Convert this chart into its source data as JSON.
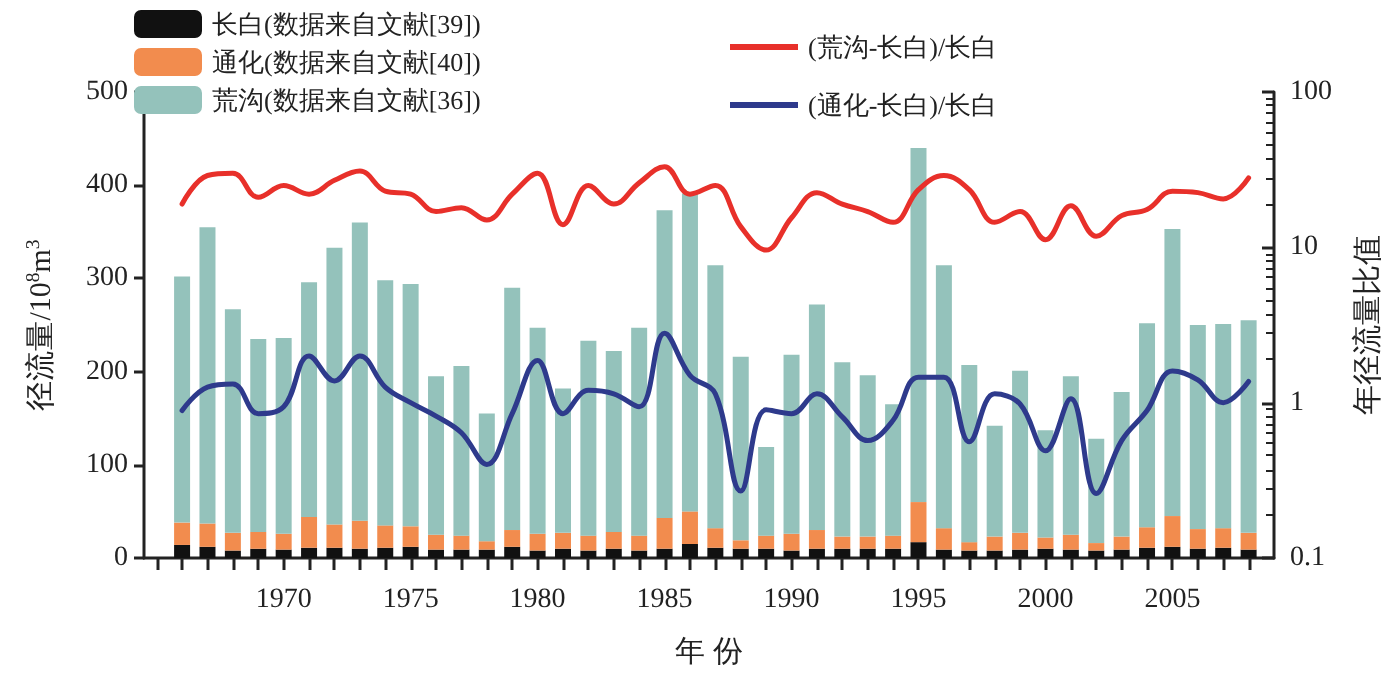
{
  "chart_data": {
    "type": "bar",
    "stacked": true,
    "xlabel": "年 份",
    "ylabel": "径流量/10$^{8}$m$^{3}$",
    "y2label": "年径流量比值",
    "x": [
      1966,
      1967,
      1968,
      1969,
      1970,
      1971,
      1972,
      1973,
      1974,
      1975,
      1976,
      1977,
      1978,
      1979,
      1980,
      1981,
      1982,
      1983,
      1984,
      1985,
      1986,
      1987,
      1988,
      1989,
      1990,
      1991,
      1992,
      1993,
      1994,
      1995,
      1996,
      1997,
      1998,
      1999,
      2000,
      2001,
      2002,
      2003,
      2004,
      2005,
      2006,
      2007,
      2008
    ],
    "series": [
      {
        "name": "长白(数据来自文献[39])",
        "color": "#111111",
        "values": [
          14,
          12,
          8,
          10,
          9,
          11,
          11,
          10,
          11,
          12,
          9,
          9,
          9,
          12,
          8,
          10,
          8,
          10,
          8,
          10,
          15,
          11,
          10,
          10,
          8,
          10,
          10,
          10,
          10,
          17,
          9,
          8,
          8,
          9,
          10,
          9,
          8,
          9,
          11,
          12,
          10,
          11,
          9
        ]
      },
      {
        "name": "通化(数据来自文献[40])",
        "color": "#f28c4e",
        "values": [
          24,
          25,
          19,
          18,
          17,
          33,
          25,
          30,
          24,
          22,
          16,
          15,
          9,
          18,
          18,
          17,
          16,
          18,
          16,
          33,
          35,
          21,
          9,
          14,
          18,
          20,
          13,
          13,
          14,
          43,
          23,
          9,
          15,
          18,
          12,
          16,
          8,
          14,
          22,
          33,
          21,
          21,
          18
        ]
      },
      {
        "name": "荒沟(数据来自文献[36])",
        "color": "#94c2bb",
        "values": [
          264,
          318,
          240,
          207,
          210,
          252,
          297,
          320,
          263,
          260,
          170,
          182,
          137,
          260,
          221,
          155,
          209,
          194,
          223,
          330,
          341,
          282,
          197,
          95,
          192,
          242,
          187,
          173,
          141,
          380,
          282,
          190,
          119,
          174,
          115,
          170,
          112,
          155,
          219,
          308,
          219,
          219,
          228
        ]
      },
      {
        "name": "(荒沟-长白)/长白",
        "type": "line",
        "axis": "y2",
        "color": "#e8302a",
        "values": [
          19,
          29,
          30,
          21,
          25,
          22,
          27,
          31,
          23,
          22,
          17,
          18,
          15,
          22,
          30,
          14,
          25,
          19,
          26,
          33,
          22,
          25,
          13.6,
          9.6,
          15.5,
          22.5,
          19,
          17,
          14.5,
          23.5,
          29,
          23.5,
          14.5,
          17,
          11.2,
          18.5,
          11.8,
          16,
          17.5,
          23,
          22.5,
          20.5,
          28
        ]
      },
      {
        "name": "(通化-长白)/长白",
        "type": "line",
        "axis": "y2",
        "color": "#2e3a8c",
        "values": [
          0.89,
          1.26,
          1.32,
          0.85,
          0.94,
          2.0,
          1.38,
          2.0,
          1.26,
          1.0,
          0.82,
          0.64,
          0.4,
          0.85,
          1.87,
          0.85,
          1.2,
          1.14,
          0.94,
          2.8,
          1.5,
          1.14,
          0.27,
          0.9,
          0.85,
          1.14,
          0.81,
          0.57,
          0.77,
          1.46,
          1.46,
          0.56,
          1.14,
          0.98,
          0.49,
          1.06,
          0.26,
          0.57,
          0.89,
          1.6,
          1.4,
          1.0,
          1.37
        ]
      }
    ],
    "xlim": [
      1964.5,
      2009
    ],
    "xticks": [
      {
        "value": 1965,
        "label": null
      },
      {
        "value": 1966,
        "label": null
      },
      {
        "value": 1967,
        "label": null
      },
      {
        "value": 1968,
        "label": null
      },
      {
        "value": 1969,
        "label": null
      },
      1970,
      {
        "value": 1971,
        "label": null
      },
      {
        "value": 1972,
        "label": null
      },
      {
        "value": 1973,
        "label": null
      },
      {
        "value": 1974,
        "label": null
      },
      1975,
      {
        "value": 1976,
        "label": null
      },
      {
        "value": 1977,
        "label": null
      },
      {
        "value": 1978,
        "label": null
      },
      {
        "value": 1979,
        "label": null
      },
      1980,
      {
        "value": 1981,
        "label": null
      },
      {
        "value": 1982,
        "label": null
      },
      {
        "value": 1983,
        "label": null
      },
      {
        "value": 1984,
        "label": null
      },
      1985,
      {
        "value": 1986,
        "label": null
      },
      {
        "value": 1987,
        "label": null
      },
      {
        "value": 1988,
        "label": null
      },
      {
        "value": 1989,
        "label": null
      },
      1990,
      {
        "value": 1991,
        "label": null
      },
      {
        "value": 1992,
        "label": null
      },
      {
        "value": 1993,
        "label": null
      },
      {
        "value": 1994,
        "label": null
      },
      1995,
      {
        "value": 1996,
        "label": null
      },
      {
        "value": 1997,
        "label": null
      },
      {
        "value": 1998,
        "label": null
      },
      {
        "value": 1999,
        "label": null
      },
      2000,
      {
        "value": 2001,
        "label": null
      },
      {
        "value": 2002,
        "label": null
      },
      {
        "value": 2003,
        "label": null
      },
      {
        "value": 2004,
        "label": null
      },
      2005,
      {
        "value": 2006,
        "label": null
      },
      {
        "value": 2007,
        "label": null
      },
      {
        "value": 2008,
        "label": null
      }
    ],
    "ylim": [
      0,
      500
    ],
    "yticks": [
      0,
      100,
      200,
      300,
      400,
      500
    ],
    "y2lim": [
      0.1,
      100
    ],
    "y2ticks": [
      0.1,
      1,
      10,
      100
    ],
    "log": "y2",
    "grid": false,
    "legend": "top",
    "marker": "none",
    "line_style": "solid"
  }
}
